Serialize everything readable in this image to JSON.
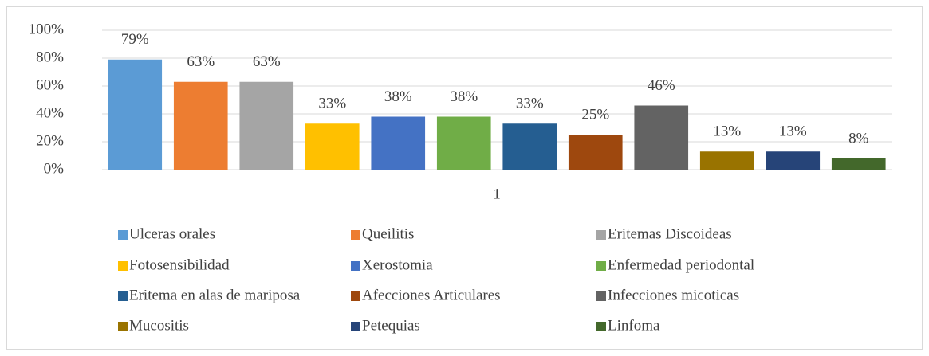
{
  "chart_data": {
    "type": "bar",
    "categories": [
      "1"
    ],
    "series": [
      {
        "name": "Ulceras orales",
        "color": "#5b9bd5",
        "values": [
          79
        ],
        "value_labels": [
          "79%"
        ]
      },
      {
        "name": "Queilitis",
        "color": "#ed7d31",
        "values": [
          63
        ],
        "value_labels": [
          "63%"
        ]
      },
      {
        "name": "Eritemas Discoideas",
        "color": "#a5a5a5",
        "values": [
          63
        ],
        "value_labels": [
          "63%"
        ]
      },
      {
        "name": "Fotosensibilidad",
        "color": "#ffc000",
        "values": [
          33
        ],
        "value_labels": [
          "33%"
        ]
      },
      {
        "name": "Xerostomia",
        "color": "#4472c4",
        "values": [
          38
        ],
        "value_labels": [
          "38%"
        ]
      },
      {
        "name": "Enfermedad periodontal",
        "color": "#70ad47",
        "values": [
          38
        ],
        "value_labels": [
          "38%"
        ]
      },
      {
        "name": "Eritema en alas de mariposa",
        "color": "#255e91",
        "values": [
          33
        ],
        "value_labels": [
          "33%"
        ]
      },
      {
        "name": "Afecciones Articulares",
        "color": "#9e480e",
        "values": [
          25
        ],
        "value_labels": [
          "25%"
        ]
      },
      {
        "name": "Infecciones micoticas",
        "color": "#636363",
        "values": [
          46
        ],
        "value_labels": [
          "46%"
        ]
      },
      {
        "name": "Mucositis",
        "color": "#997300",
        "values": [
          13
        ],
        "value_labels": [
          "13%"
        ]
      },
      {
        "name": "Petequias",
        "color": "#264478",
        "values": [
          13
        ],
        "value_labels": [
          "13%"
        ]
      },
      {
        "name": "Linfoma",
        "color": "#43682b",
        "values": [
          8
        ],
        "value_labels": [
          "8%"
        ]
      }
    ],
    "ylim": [
      0,
      100
    ],
    "yticks": [
      {
        "value": 0,
        "label": "0%"
      },
      {
        "value": 20,
        "label": "20%"
      },
      {
        "value": 40,
        "label": "40%"
      },
      {
        "value": 60,
        "label": "60%"
      },
      {
        "value": 80,
        "label": "80%"
      },
      {
        "value": 100,
        "label": "100%"
      }
    ],
    "grid": true,
    "legend": "bottom"
  }
}
